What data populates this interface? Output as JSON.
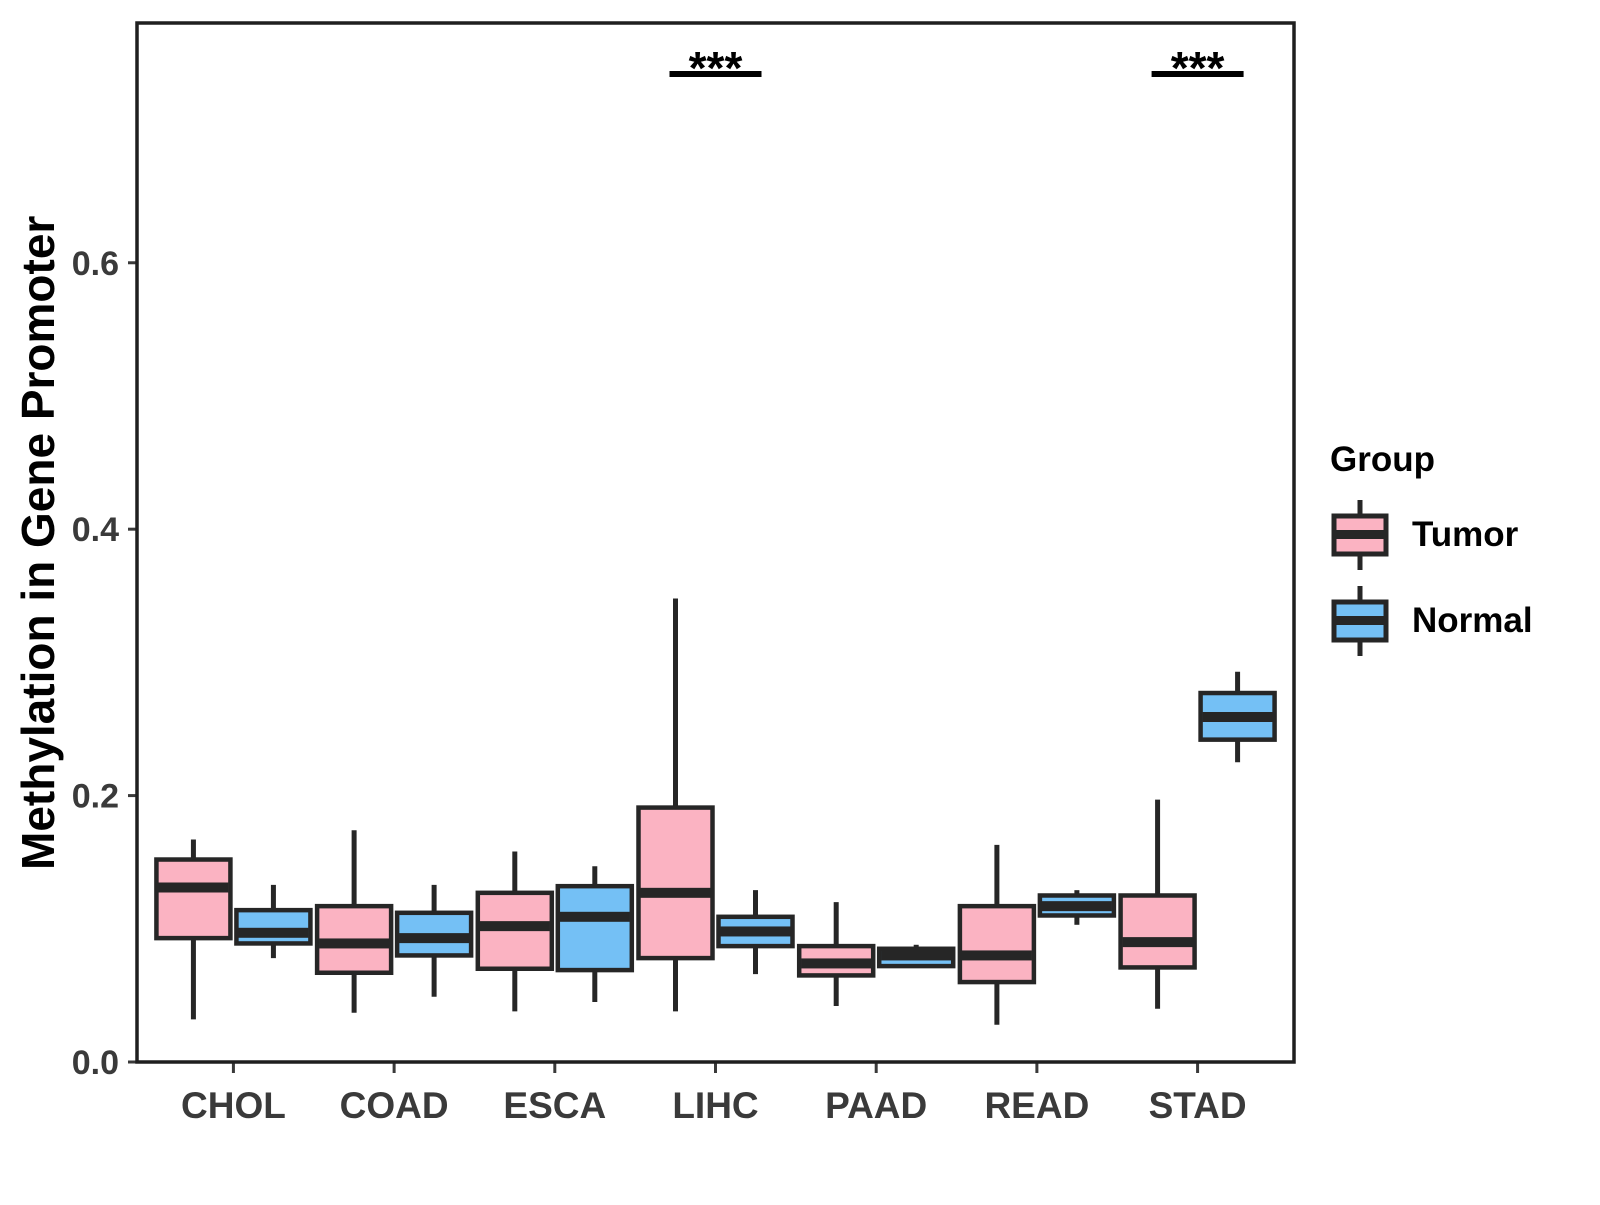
{
  "figure": {
    "y_axis_title": "Methylation in Gene Promoter"
  },
  "chart_data": {
    "type": "boxplot",
    "title": "",
    "xlabel": "",
    "ylabel": "Methylation in Gene Promoter",
    "categories": [
      "CHOL",
      "COAD",
      "ESCA",
      "LIHC",
      "PAAD",
      "READ",
      "STAD"
    ],
    "ylim": [
      0,
      0.78
    ],
    "yticks": [
      0.0,
      0.2,
      0.4,
      0.6
    ],
    "ytick_labels": [
      "0.0",
      "0.2",
      "0.4",
      "0.6"
    ],
    "grid": false,
    "legend_position": "right",
    "legend_title": "Group",
    "series": [
      {
        "name": "Tumor",
        "color": "#FBB3C2",
        "boxes": [
          {
            "min": 0.032,
            "q1": 0.093,
            "median": 0.131,
            "q3": 0.152,
            "max": 0.167
          },
          {
            "min": 0.037,
            "q1": 0.067,
            "median": 0.089,
            "q3": 0.117,
            "max": 0.174
          },
          {
            "min": 0.038,
            "q1": 0.07,
            "median": 0.102,
            "q3": 0.127,
            "max": 0.158
          },
          {
            "min": 0.038,
            "q1": 0.078,
            "median": 0.127,
            "q3": 0.191,
            "max": 0.348
          },
          {
            "min": 0.042,
            "q1": 0.065,
            "median": 0.074,
            "q3": 0.087,
            "max": 0.12
          },
          {
            "min": 0.028,
            "q1": 0.06,
            "median": 0.08,
            "q3": 0.117,
            "max": 0.163
          },
          {
            "min": 0.04,
            "q1": 0.071,
            "median": 0.09,
            "q3": 0.125,
            "max": 0.197
          }
        ]
      },
      {
        "name": "Normal",
        "color": "#74C0F5",
        "boxes": [
          {
            "min": 0.078,
            "q1": 0.089,
            "median": 0.097,
            "q3": 0.114,
            "max": 0.133
          },
          {
            "min": 0.049,
            "q1": 0.08,
            "median": 0.093,
            "q3": 0.112,
            "max": 0.133
          },
          {
            "min": 0.045,
            "q1": 0.069,
            "median": 0.109,
            "q3": 0.132,
            "max": 0.147
          },
          {
            "min": 0.066,
            "q1": 0.087,
            "median": 0.098,
            "q3": 0.109,
            "max": 0.129
          },
          {
            "min": 0.071,
            "q1": 0.072,
            "median": 0.08,
            "q3": 0.085,
            "max": 0.088
          },
          {
            "min": 0.103,
            "q1": 0.11,
            "median": 0.117,
            "q3": 0.125,
            "max": 0.129
          },
          {
            "min": 0.225,
            "q1": 0.242,
            "median": 0.259,
            "q3": 0.277,
            "max": 0.293
          }
        ]
      }
    ],
    "significance": [
      {
        "category": "LIHC",
        "label": "***"
      },
      {
        "category": "STAD",
        "label": "***"
      }
    ],
    "colors": {
      "box_stroke": "#262626",
      "panel_border": "#1f1f1f",
      "axis_text": "#3a3a3a",
      "title_text": "#000000"
    }
  }
}
